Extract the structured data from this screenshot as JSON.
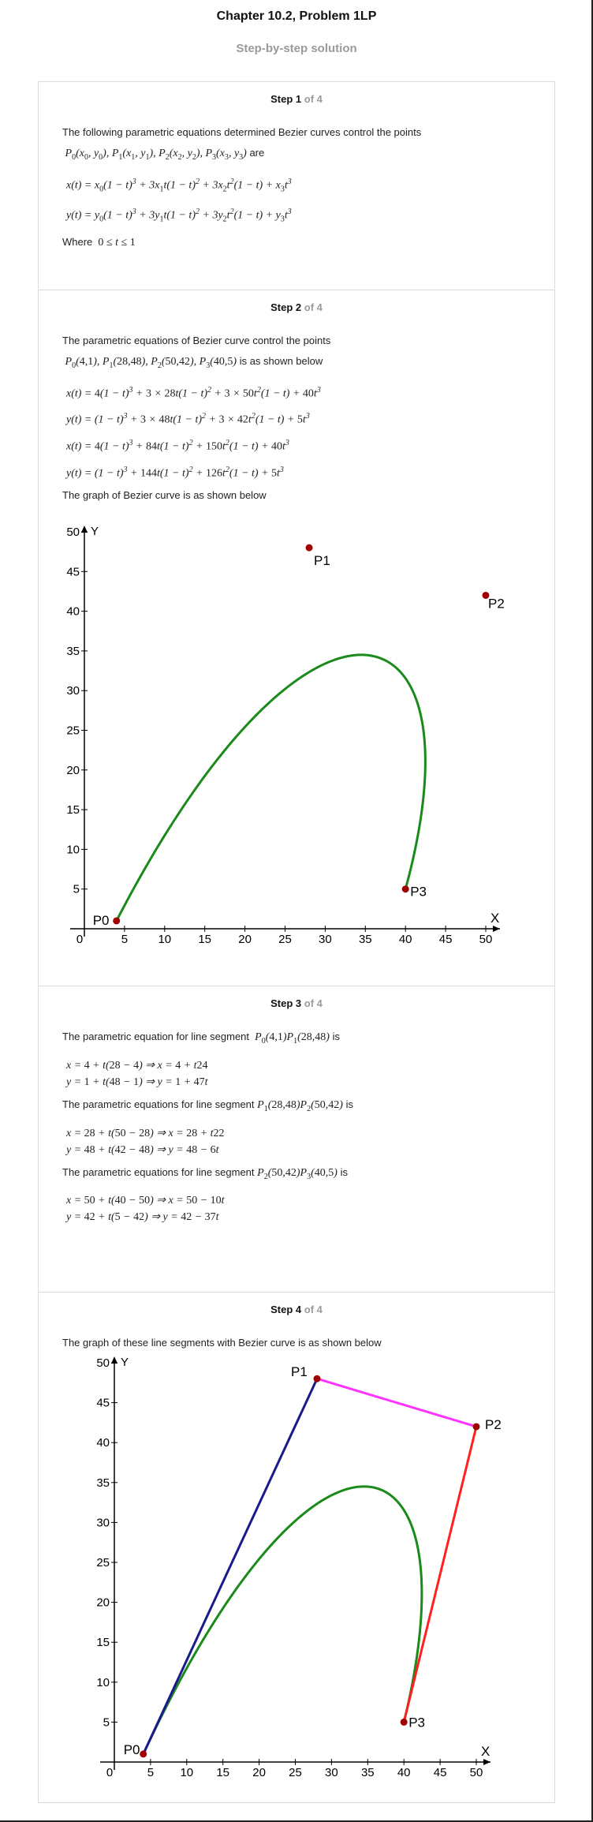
{
  "header": {
    "title": "Chapter 10.2, Problem 1LP",
    "subtitle": "Step-by-step solution"
  },
  "steps": [
    {
      "label": "Step 1",
      "of": "of 4",
      "intro": "The following parametric equations determined Bezier curves control the points",
      "are": "are",
      "where": "Where"
    },
    {
      "label": "Step 2",
      "of": "of 4",
      "intro": "The parametric equations of Bezier curve control the points",
      "shown": "is as shown below",
      "graph_caption": "The graph of Bezier curve is as shown below"
    },
    {
      "label": "Step 3",
      "of": "of 4",
      "intro1": "The parametric equation for line segment",
      "intro2": "The parametric equations for line segment",
      "intro3": "The parametric equations for line segment",
      "is": "is"
    },
    {
      "label": "Step 4",
      "of": "of 4",
      "intro": "The graph of these line segments with Bezier curve is as shown below"
    }
  ],
  "chart_data": [
    {
      "type": "line",
      "xlabel": "X",
      "ylabel": "Y",
      "xlim": [
        0,
        50
      ],
      "ylim": [
        0,
        50
      ],
      "xticks": [
        0,
        5,
        10,
        15,
        20,
        25,
        30,
        35,
        40,
        45,
        50
      ],
      "yticks": [
        5,
        10,
        15,
        20,
        25,
        30,
        35,
        40,
        45,
        50
      ],
      "control_points": [
        {
          "name": "P0",
          "x": 4,
          "y": 1
        },
        {
          "name": "P1",
          "x": 28,
          "y": 48
        },
        {
          "name": "P2",
          "x": 50,
          "y": 42
        },
        {
          "name": "P3",
          "x": 40,
          "y": 5
        }
      ],
      "series": [
        {
          "curve": "bezier",
          "color": "#1a8a1a"
        }
      ],
      "point_color": "#a00000"
    },
    {
      "type": "line",
      "xlabel": "X",
      "ylabel": "Y",
      "xlim": [
        0,
        50
      ],
      "ylim": [
        0,
        50
      ],
      "xticks": [
        0,
        5,
        10,
        15,
        20,
        25,
        30,
        35,
        40,
        45,
        50
      ],
      "yticks": [
        5,
        10,
        15,
        20,
        25,
        30,
        35,
        40,
        45,
        50
      ],
      "control_points": [
        {
          "name": "P0",
          "x": 4,
          "y": 1
        },
        {
          "name": "P1",
          "x": 28,
          "y": 48
        },
        {
          "name": "P2",
          "x": 50,
          "y": 42
        },
        {
          "name": "P3",
          "x": 40,
          "y": 5
        }
      ],
      "series": [
        {
          "curve": "bezier",
          "color": "#1a8a1a"
        },
        {
          "from": "P0",
          "to": "P1",
          "color": "#1a1a8c"
        },
        {
          "from": "P1",
          "to": "P2",
          "color": "#ff33ff"
        },
        {
          "from": "P2",
          "to": "P3",
          "color": "#ff2020"
        }
      ],
      "point_color": "#a00000"
    }
  ]
}
